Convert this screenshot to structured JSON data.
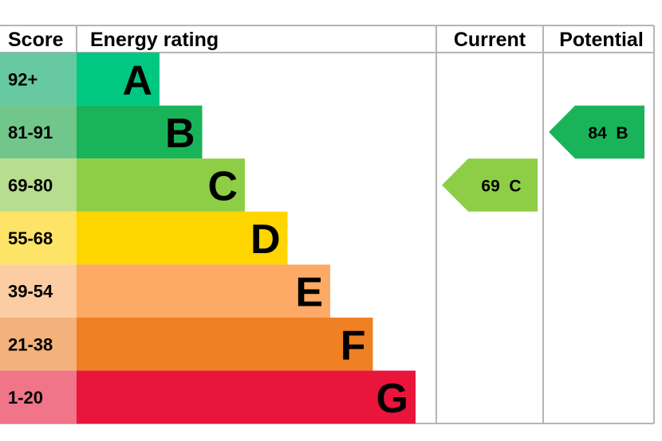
{
  "header": {
    "score_label": "Score",
    "rating_label": "Energy rating",
    "current_label": "Current",
    "potential_label": "Potential"
  },
  "chart_data": {
    "type": "bar",
    "bands": [
      {
        "letter": "A",
        "score": "92+",
        "color": "#00c781",
        "light": "#66c9a2"
      },
      {
        "letter": "B",
        "score": "81-91",
        "color": "#19b459",
        "light": "#71c68c"
      },
      {
        "letter": "C",
        "score": "69-80",
        "color": "#8dce46",
        "light": "#b7dd8e"
      },
      {
        "letter": "D",
        "score": "55-68",
        "color": "#ffd500",
        "light": "#fde466"
      },
      {
        "letter": "E",
        "score": "39-54",
        "color": "#fcaa65",
        "light": "#fccca2"
      },
      {
        "letter": "F",
        "score": "21-38",
        "color": "#ef8023",
        "light": "#f3b17b"
      },
      {
        "letter": "G",
        "score": "1-20",
        "color": "#e9153b",
        "light": "#f07589"
      }
    ],
    "current": {
      "value": 69,
      "band": "C",
      "label": "69  C"
    },
    "potential": {
      "value": 84,
      "band": "B",
      "label": "84  B"
    }
  }
}
